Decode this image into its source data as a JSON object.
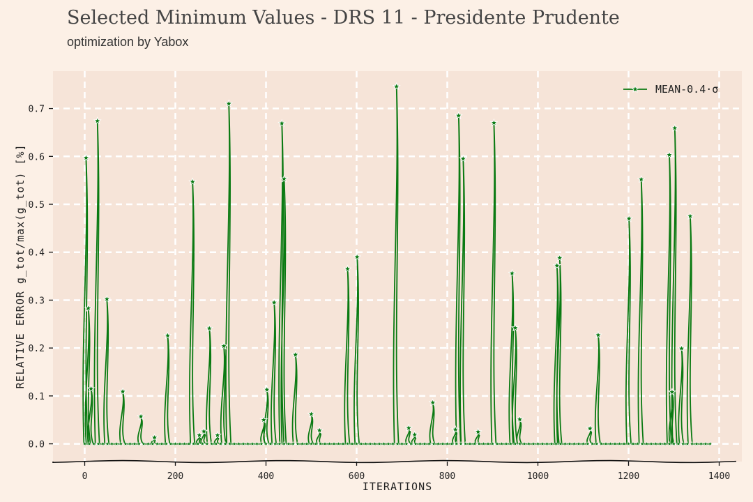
{
  "header": {
    "title": "Selected Minimum Values - DRS 11 - Presidente Prudente",
    "subtitle": "optimization by Yabox"
  },
  "colors": {
    "background": "#fcf0e6",
    "plot_background": "#f6e4d8",
    "grid": "#ffffff",
    "series": "#0a7a12"
  },
  "chart_data": {
    "type": "line",
    "xlabel": "ITERATIONS",
    "ylabel": "RELATIVE ERROR g_tot/max(g_tot) [%]",
    "xlim": [
      -70,
      1450
    ],
    "ylim": [
      -0.037,
      0.778
    ],
    "xticks": [
      0,
      200,
      400,
      600,
      800,
      1000,
      1200,
      1400
    ],
    "yticks": [
      0.0,
      0.1,
      0.2,
      0.3,
      0.4,
      0.5,
      0.6,
      0.7
    ],
    "ytick_labels": [
      "0.0",
      "0.1",
      "0.2",
      "0.3",
      "0.4",
      "0.5",
      "0.6",
      "0.7"
    ],
    "grid": true,
    "legend_position": "top-right",
    "series": [
      {
        "name": "MEAN-0.4·σ",
        "style": "line-with-star-markers",
        "peaks": [
          [
            3,
            0.597
          ],
          [
            8,
            0.283
          ],
          [
            14,
            0.115
          ],
          [
            28,
            0.674
          ],
          [
            49,
            0.302
          ],
          [
            84,
            0.109
          ],
          [
            124,
            0.057
          ],
          [
            154,
            0.013
          ],
          [
            183,
            0.226
          ],
          [
            238,
            0.547
          ],
          [
            253,
            0.018
          ],
          [
            263,
            0.026
          ],
          [
            275,
            0.241
          ],
          [
            293,
            0.018
          ],
          [
            307,
            0.204
          ],
          [
            318,
            0.71
          ],
          [
            395,
            0.05
          ],
          [
            402,
            0.113
          ],
          [
            418,
            0.295
          ],
          [
            435,
            0.669
          ],
          [
            440,
            0.553
          ],
          [
            465,
            0.186
          ],
          [
            500,
            0.062
          ],
          [
            518,
            0.028
          ],
          [
            580,
            0.365
          ],
          [
            601,
            0.39
          ],
          [
            688,
            0.746
          ],
          [
            715,
            0.033
          ],
          [
            728,
            0.019
          ],
          [
            768,
            0.086
          ],
          [
            818,
            0.03
          ],
          [
            825,
            0.685
          ],
          [
            835,
            0.595
          ],
          [
            868,
            0.025
          ],
          [
            903,
            0.67
          ],
          [
            943,
            0.356
          ],
          [
            950,
            0.242
          ],
          [
            960,
            0.051
          ],
          [
            1042,
            0.372
          ],
          [
            1048,
            0.388
          ],
          [
            1115,
            0.032
          ],
          [
            1133,
            0.227
          ],
          [
            1201,
            0.47
          ],
          [
            1228,
            0.552
          ],
          [
            1290,
            0.603
          ],
          [
            1296,
            0.108
          ],
          [
            1302,
            0.659
          ],
          [
            1317,
            0.199
          ],
          [
            1336,
            0.475
          ]
        ],
        "zero_markers_step": 10,
        "x_range": [
          0,
          1382
        ]
      }
    ]
  }
}
